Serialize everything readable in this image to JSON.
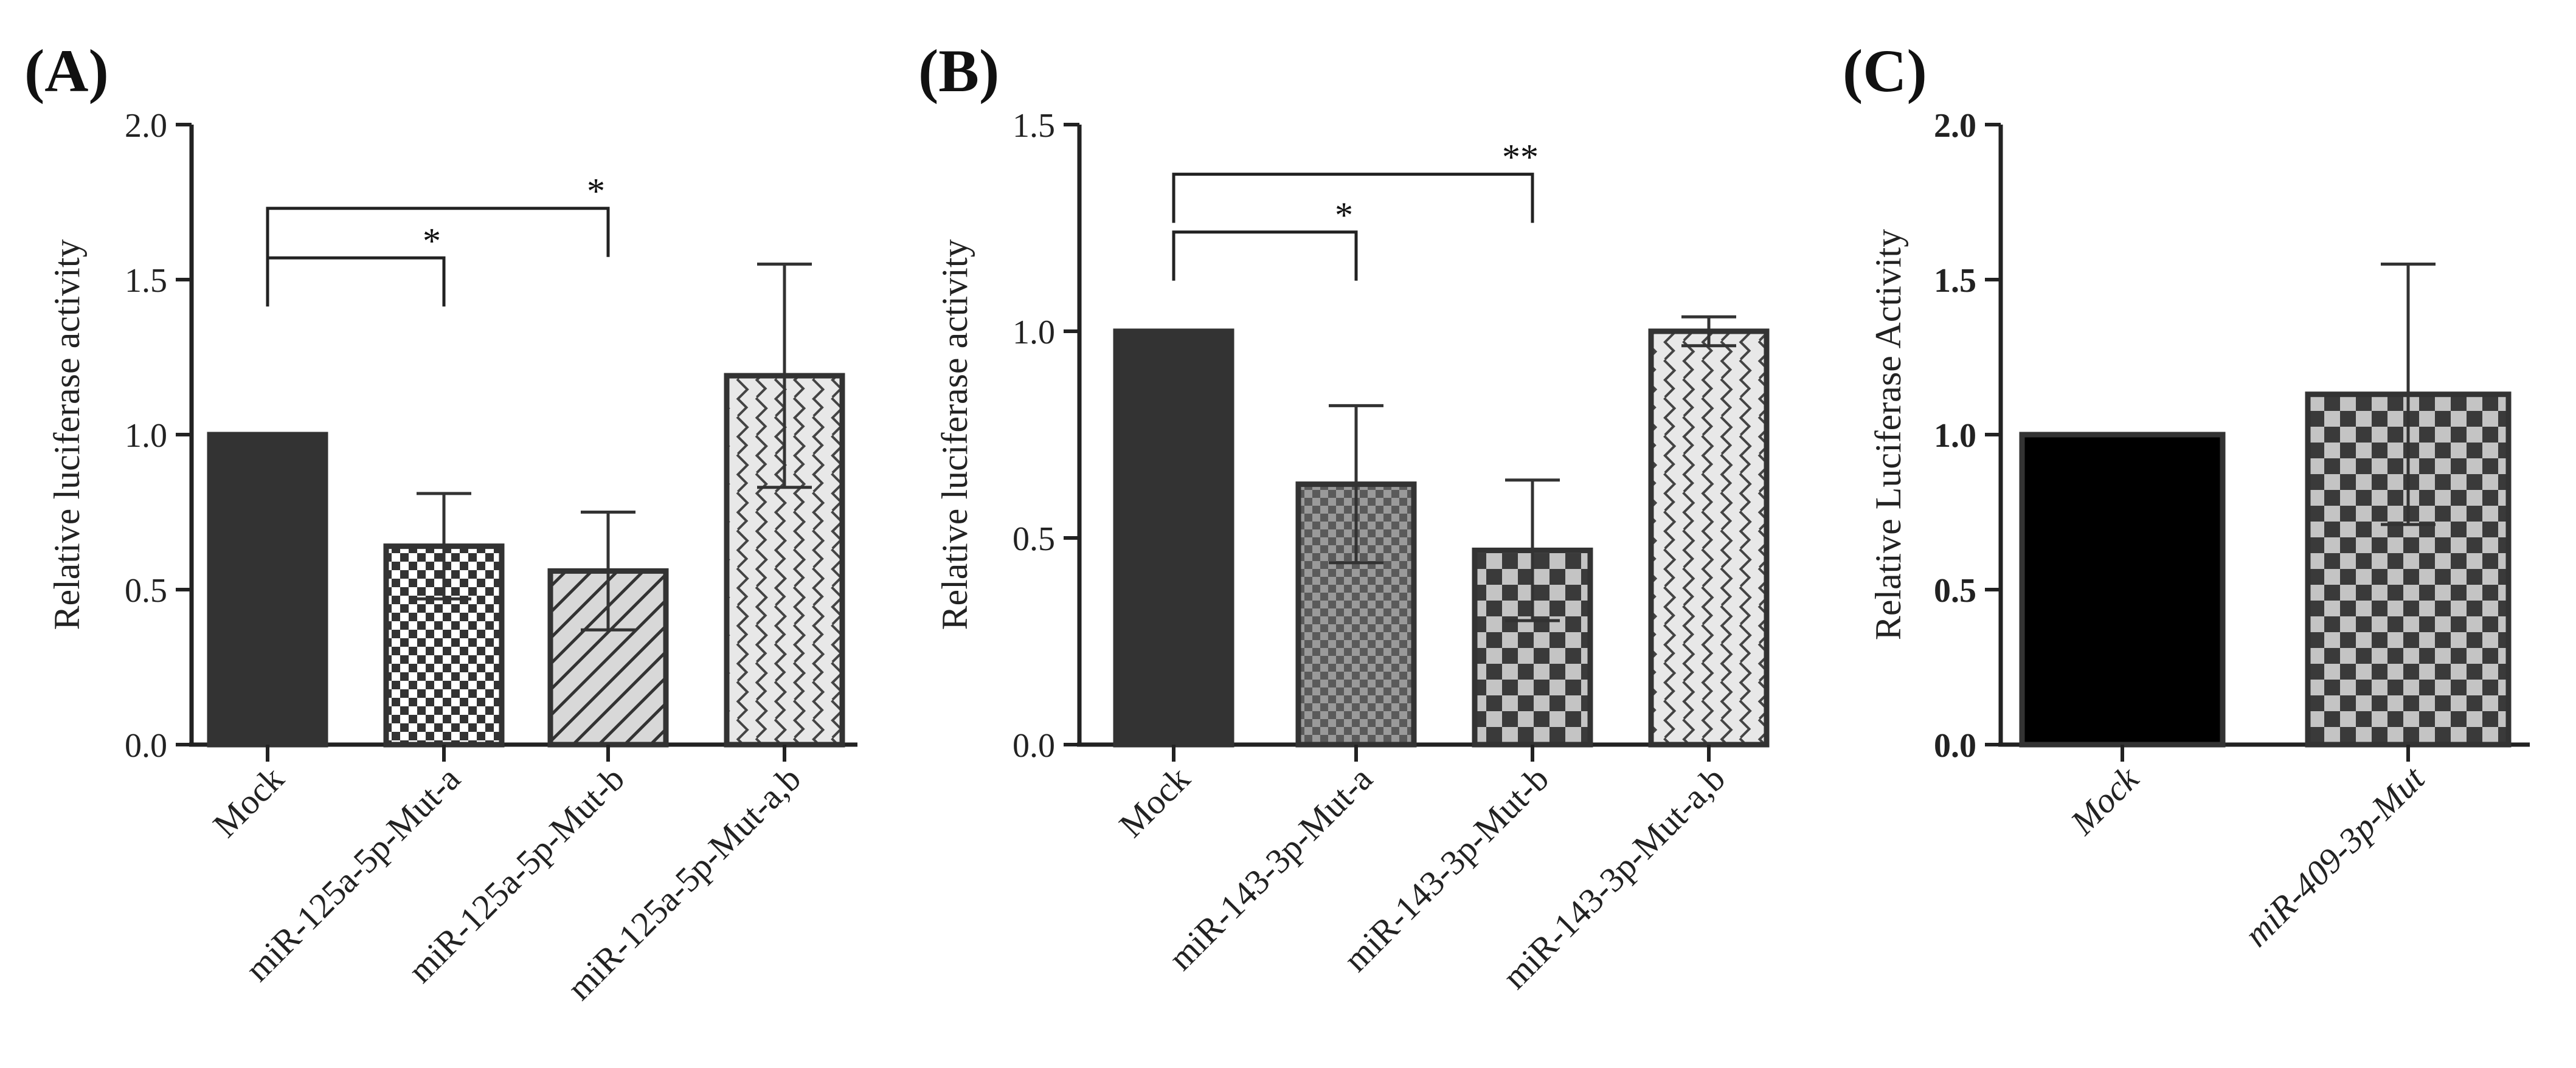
{
  "chart_data": [
    {
      "panel_label": "(A)",
      "type": "bar",
      "ylabel": "Relative luciferase activity",
      "ylim": [
        0,
        2.0
      ],
      "yticks": [
        "0.0",
        "0.5",
        "1.0",
        "1.5",
        "2.0"
      ],
      "categories": [
        "Mock",
        "miR-125a-5p-Mut-a",
        "miR-125a-5p-Mut-b",
        "miR-125a-5p-Mut-a,b"
      ],
      "values": [
        1.0,
        0.64,
        0.56,
        1.19
      ],
      "errors": [
        0,
        0.17,
        0.19,
        0.36
      ],
      "patterns": [
        "solid",
        "check-fine",
        "diagonal",
        "weave"
      ],
      "colors": [
        "#333333",
        "#333333",
        "#bbbbbb",
        "#d0d0d0"
      ],
      "significance": [
        {
          "from": 0,
          "to": 1,
          "label": "*",
          "level": 1.57
        },
        {
          "from": 0,
          "to": 2,
          "label": "*",
          "level": 1.73
        }
      ]
    },
    {
      "panel_label": "(B)",
      "type": "bar",
      "ylabel": "Relative luciferase activity",
      "ylim": [
        0,
        1.5
      ],
      "yticks": [
        "0.0",
        "0.5",
        "1.0",
        "1.5"
      ],
      "categories": [
        "Mock",
        "miR-143-3p-Mut-a",
        "miR-143-3p-Mut-b",
        "miR-143-3p-Mut-a,b"
      ],
      "values": [
        1.0,
        0.63,
        0.47,
        1.0
      ],
      "errors": [
        0,
        0.19,
        0.17,
        0.035
      ],
      "patterns": [
        "solid",
        "check-med",
        "check-large",
        "weave"
      ],
      "colors": [
        "#333333",
        "#666666",
        "#444444",
        "#555555"
      ],
      "significance": [
        {
          "from": 0,
          "to": 1,
          "label": "*",
          "level": 1.24
        },
        {
          "from": 0,
          "to": 2,
          "label": "**",
          "level": 1.38
        }
      ]
    },
    {
      "panel_label": "(C)",
      "type": "bar",
      "ylabel": "Relative Luciferase Activity",
      "ylim": [
        0,
        2.0
      ],
      "yticks": [
        "0.0",
        "0.5",
        "1.0",
        "1.5",
        "2.0"
      ],
      "categories": [
        "Mock",
        "miR-409-3p-Mut"
      ],
      "values": [
        1.0,
        1.13
      ],
      "errors": [
        0,
        0.42
      ],
      "patterns": [
        "solid-black",
        "check-large"
      ],
      "colors": [
        "#000000",
        "#444444"
      ],
      "significance": []
    }
  ]
}
